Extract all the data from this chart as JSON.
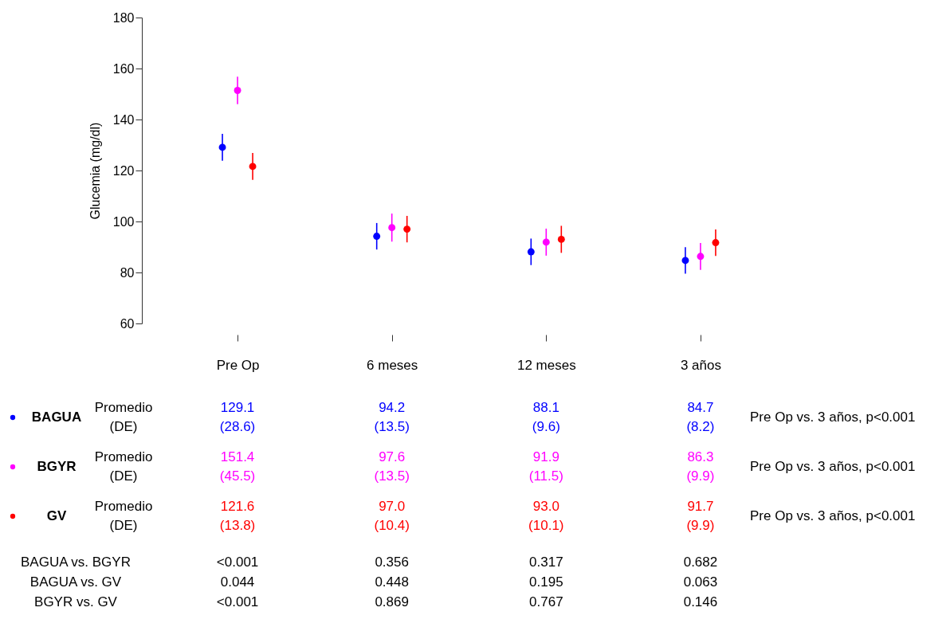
{
  "chart_data": {
    "type": "scatter",
    "ylabel": "Glucemia (mg/dl)",
    "categories": [
      "Pre Op",
      "6 meses",
      "12 meses",
      "3 años"
    ],
    "series": [
      {
        "name": "BAGUA",
        "color": "#0000ff",
        "values": [
          129.1,
          94.2,
          88.1,
          84.7
        ],
        "value_labels": [
          "129.1",
          "94.2",
          "88.1",
          "84.7"
        ],
        "errors": [
          5.3,
          5.2,
          5.2,
          5.2
        ]
      },
      {
        "name": "BGYR",
        "color": "#ff00ff",
        "values": [
          151.4,
          97.6,
          91.9,
          86.3
        ],
        "value_labels": [
          "151.4",
          "97.6",
          "91.9",
          "86.3"
        ],
        "errors": [
          5.4,
          5.5,
          5.3,
          5.3
        ]
      },
      {
        "name": "GV",
        "color": "#ff0000",
        "values": [
          121.6,
          97.0,
          93.0,
          91.7
        ],
        "value_labels": [
          "121.6",
          "97.0",
          "93.0",
          "91.7"
        ],
        "errors": [
          5.3,
          5.2,
          5.3,
          5.2
        ]
      }
    ],
    "ylim": [
      60,
      180
    ],
    "yticks": [
      60,
      80,
      100,
      120,
      140,
      160,
      180
    ],
    "grid": false,
    "marker": "circle",
    "legend": "bottom left",
    "annotations": [
      "Promedio",
      "(DE)",
      "(28.6)",
      "(13.5)",
      "(9.6)",
      "(8.2)",
      "(45.5)",
      "(13.5)",
      "(11.5)",
      "(9.9)",
      "(13.8)",
      "(10.4)",
      "(10.1)",
      "(9.9)",
      "Pre Op vs. 3 años, p<0.001",
      "Pre Op vs. 3 años, p<0.001",
      "Pre Op vs. 3 años, p<0.001",
      "BAGUA vs. BGYR",
      "BAGUA vs. GV",
      "BGYR vs. GV",
      "<0.001",
      "0.356",
      "0.317",
      "0.682",
      "0.044",
      "0.448",
      "0.195",
      "0.063",
      "<0.001",
      "0.869",
      "0.767",
      "0.146"
    ]
  }
}
